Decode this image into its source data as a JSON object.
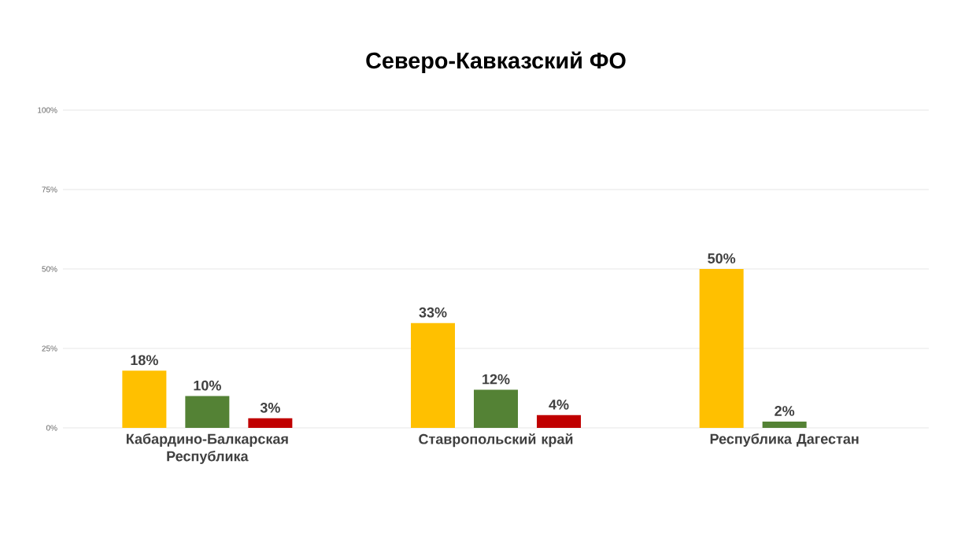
{
  "chart_data": {
    "type": "bar",
    "title": "Северо-Кавказский ФО",
    "categories": [
      "Кабардино-Балкарская Республика",
      "Ставропольский край",
      "Республика Дагестан"
    ],
    "series": [
      {
        "color": "#ffc000",
        "values": [
          18,
          33,
          50
        ],
        "value_labels": [
          "18%",
          "33%",
          "50%"
        ]
      },
      {
        "color": "#548235",
        "values": [
          10,
          12,
          2
        ],
        "value_labels": [
          "10%",
          "12%",
          "2%"
        ]
      },
      {
        "color": "#c00000",
        "values": [
          3,
          4,
          null
        ],
        "value_labels": [
          "3%",
          "4%",
          null
        ]
      }
    ],
    "ylim": [
      0,
      100
    ],
    "yticks": [
      {
        "value": 0,
        "label": "0%"
      },
      {
        "value": 25,
        "label": "25%"
      },
      {
        "value": 50,
        "label": "50%"
      },
      {
        "value": 75,
        "label": "75%"
      },
      {
        "value": 100,
        "label": "100%"
      }
    ],
    "grid": "y"
  }
}
